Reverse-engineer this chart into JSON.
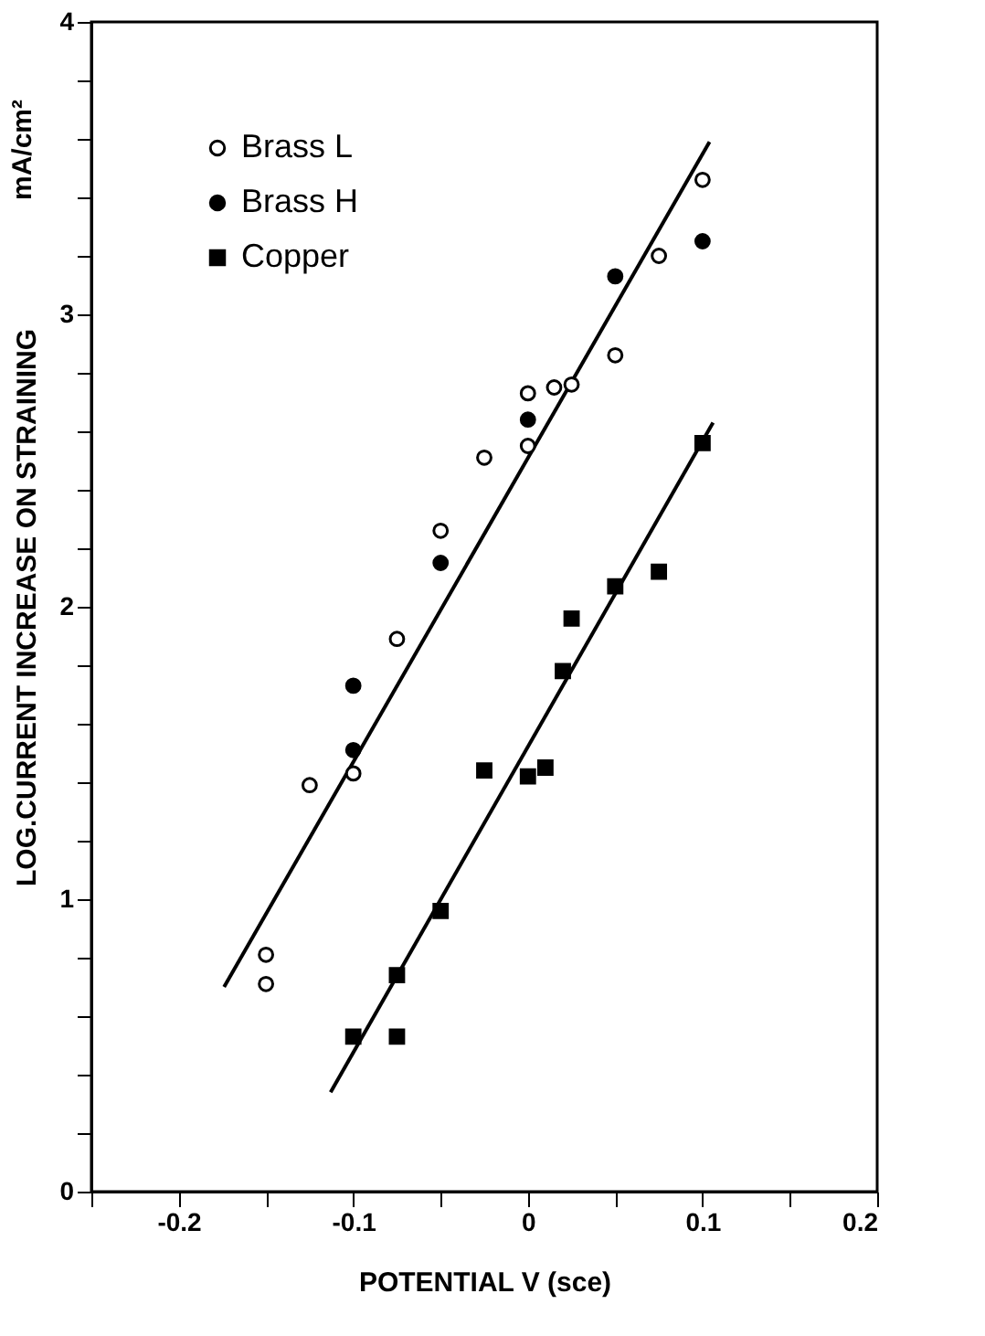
{
  "chart_data": {
    "type": "scatter",
    "xlabel": "POTENTIAL      V (sce)",
    "ylabel": "LOG.CURRENT INCREASE ON STRAINING",
    "annotations": [
      "mA/cm²"
    ],
    "xlim": [
      -0.25,
      0.2
    ],
    "ylim": [
      0,
      4
    ],
    "xticks": [
      {
        "value": -0.25,
        "label": null
      },
      {
        "value": -0.2,
        "label": "-0.2"
      },
      {
        "value": -0.15,
        "label": null
      },
      {
        "value": -0.1,
        "label": "-0.1"
      },
      {
        "value": -0.05,
        "label": null
      },
      0,
      {
        "value": 0.05,
        "label": null
      },
      {
        "value": 0.1,
        "label": "0.1"
      },
      {
        "value": 0.15,
        "label": null
      },
      {
        "value": 0.2,
        "label": "0.2"
      }
    ],
    "yticks": [
      0,
      {
        "value": 0.2,
        "label": null
      },
      {
        "value": 0.4,
        "label": null
      },
      {
        "value": 0.6,
        "label": null
      },
      {
        "value": 0.8,
        "label": null
      },
      1,
      {
        "value": 1.2,
        "label": null
      },
      {
        "value": 1.4,
        "label": null
      },
      {
        "value": 1.6,
        "label": null
      },
      {
        "value": 1.8,
        "label": null
      },
      2,
      {
        "value": 2.2,
        "label": null
      },
      {
        "value": 2.4,
        "label": null
      },
      {
        "value": 2.6,
        "label": null
      },
      {
        "value": 2.8,
        "label": null
      },
      3,
      {
        "value": 3.2,
        "label": null
      },
      {
        "value": 3.4,
        "label": null
      },
      {
        "value": 3.6,
        "label": null
      },
      {
        "value": 3.8,
        "label": null
      },
      4
    ],
    "grid": false,
    "legend": "top left",
    "series": [
      {
        "name": "Brass L",
        "color": "#ffffff",
        "marker": "circle",
        "x": [
          -0.15,
          -0.15,
          -0.125,
          -0.1,
          -0.075,
          -0.05,
          -0.025,
          0,
          0,
          0.015,
          0.025,
          0.05,
          0.075,
          0.1
        ],
        "values": [
          0.81,
          0.71,
          1.39,
          1.43,
          1.89,
          2.26,
          2.51,
          2.55,
          2.73,
          2.75,
          2.76,
          2.86,
          3.2,
          3.46
        ]
      },
      {
        "name": "Brass H",
        "color": "#000000",
        "marker": "circle",
        "x": [
          -0.1,
          -0.1,
          -0.05,
          0,
          0.05,
          0.1
        ],
        "values": [
          1.51,
          1.73,
          2.15,
          2.64,
          3.13,
          3.25
        ]
      },
      {
        "name": "Copper",
        "color": "#000000",
        "marker": "square",
        "x": [
          -0.1,
          -0.075,
          -0.075,
          -0.05,
          -0.025,
          0,
          0.01,
          0.02,
          0.025,
          0.05,
          0.075,
          0.1
        ],
        "values": [
          0.53,
          0.53,
          0.74,
          0.96,
          1.44,
          1.42,
          1.45,
          1.78,
          1.96,
          2.07,
          2.12,
          2.56
        ]
      },
      {
        "type": "line",
        "color": "#000000",
        "x": [
          -0.174,
          0.104
        ],
        "values": [
          0.7,
          3.59
        ]
      },
      {
        "type": "line",
        "color": "#000000",
        "x": [
          -0.113,
          0.106
        ],
        "values": [
          0.34,
          2.63
        ]
      }
    ]
  }
}
